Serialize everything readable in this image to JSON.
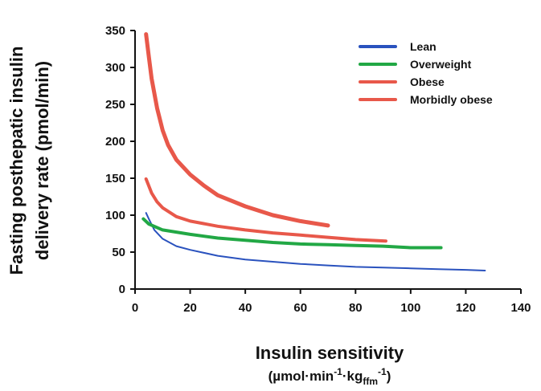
{
  "chart_data": {
    "type": "line",
    "title": "",
    "ylabel_line1": "Fasting posthepatic insulin",
    "ylabel_line2": "delivery rate (pmol/min)",
    "xlabel": "Insulin sensitivity",
    "xlabel_units": {
      "open": "(µmol·min",
      "sup1": "-1",
      "mid": "·kg",
      "sub": "ffm",
      "sup2": "-1",
      "close": ")"
    },
    "xlim": [
      0,
      140
    ],
    "ylim": [
      0,
      350
    ],
    "xticks": [
      0,
      20,
      40,
      60,
      80,
      100,
      120,
      140
    ],
    "yticks": [
      0,
      50,
      100,
      150,
      200,
      250,
      300,
      350
    ],
    "grid": false,
    "legend_position": "top-right",
    "series": [
      {
        "name": "Lean",
        "color": "#2a52be",
        "width": 2,
        "x": [
          4,
          5,
          7,
          10,
          15,
          20,
          30,
          40,
          50,
          60,
          70,
          80,
          90,
          100,
          110,
          120,
          127
        ],
        "y": [
          103,
          95,
          80,
          68,
          58,
          53,
          45,
          40,
          37,
          34,
          32,
          30,
          29,
          28,
          27,
          26,
          25
        ]
      },
      {
        "name": "Overweight",
        "color": "#22a845",
        "width": 4,
        "x": [
          3,
          5,
          10,
          20,
          30,
          40,
          50,
          60,
          70,
          80,
          90,
          100,
          111
        ],
        "y": [
          95,
          88,
          80,
          74,
          69,
          66,
          63,
          61,
          60,
          59,
          58,
          56,
          56
        ]
      },
      {
        "name": "Obese",
        "color": "#e8584a",
        "width": 4,
        "x": [
          4,
          6,
          8,
          10,
          15,
          20,
          30,
          40,
          50,
          60,
          70,
          80,
          91
        ],
        "y": [
          149,
          130,
          118,
          110,
          98,
          92,
          85,
          80,
          76,
          73,
          70,
          67,
          65
        ]
      },
      {
        "name": "Morbidly obese",
        "color": "#e8584a",
        "width": 5,
        "x": [
          4,
          5,
          6,
          8,
          10,
          12,
          15,
          20,
          25,
          30,
          40,
          50,
          60,
          70
        ],
        "y": [
          345,
          315,
          285,
          245,
          215,
          195,
          175,
          155,
          140,
          127,
          112,
          100,
          92,
          86
        ]
      }
    ]
  }
}
